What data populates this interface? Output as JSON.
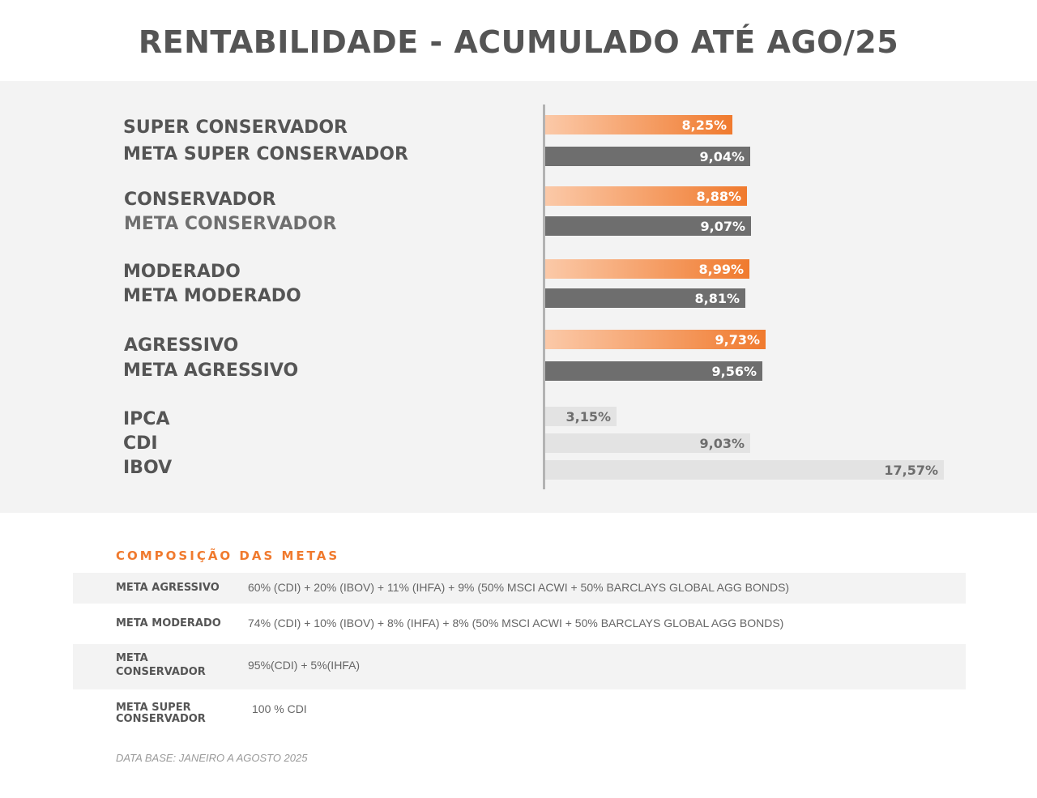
{
  "title": "RENTABILIDADE - ACUMULADO ATÉ AGO/25",
  "colors": {
    "orange_start": "#fbc9a8",
    "orange_end": "#f07a2e",
    "dark_bar": "#6e6e6e",
    "light_bar": "#e3e3e3",
    "accent": "#f07a2e"
  },
  "chart_data": {
    "type": "bar",
    "orientation": "horizontal",
    "categories": [
      "SUPER CONSERVADOR",
      "META SUPER CONSERVADOR",
      "CONSERVADOR",
      "META CONSERVADOR",
      "MODERADO",
      "META MODERADO",
      "AGRESSIVO",
      "META AGRESSIVO",
      "IPCA",
      "CDI",
      "IBOV"
    ],
    "values": [
      8.25,
      9.04,
      8.88,
      9.07,
      8.99,
      8.81,
      9.73,
      9.56,
      3.15,
      9.03,
      17.57
    ],
    "value_labels": [
      "8,25%",
      "9,04%",
      "8,88%",
      "9,07%",
      "8,99%",
      "8,81%",
      "9,73%",
      "9,56%",
      "3,15%",
      "9,03%",
      "17,57%"
    ],
    "bar_styles": [
      "orange",
      "dark",
      "orange",
      "dark",
      "orange",
      "dark",
      "orange",
      "dark",
      "light",
      "light",
      "light"
    ],
    "grid": false
  },
  "composicao": {
    "heading": "COMPOSIÇÃO DAS METAS",
    "rows": [
      {
        "label": "META AGRESSIVO",
        "value": "60% (CDI) + 20% (IBOV) + 11% (IHFA) + 9% (50% MSCI ACWI + 50% BARCLAYS GLOBAL AGG BONDS)"
      },
      {
        "label": "META MODERADO",
        "value": "74% (CDI) + 10% (IBOV) + 8% (IHFA) + 8% (50% MSCI ACWI + 50% BARCLAYS GLOBAL AGG BONDS)"
      },
      {
        "label": "META\nCONSERVADOR",
        "value": "95%(CDI) + 5%(IHFA)"
      },
      {
        "label": "META SUPER\nCONSERVADOR",
        "value": "100 % CDI"
      }
    ]
  },
  "footnote": "DATA BASE: JANEIRO A AGOSTO 2025"
}
